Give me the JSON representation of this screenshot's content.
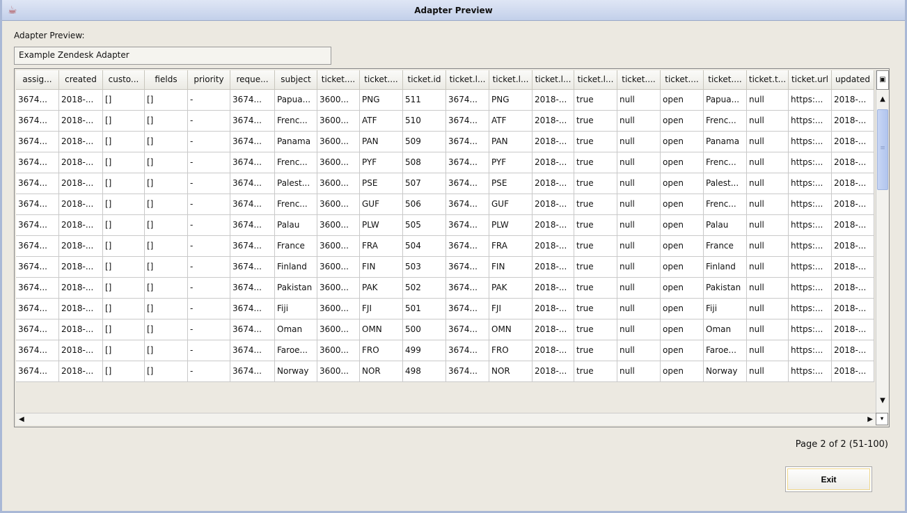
{
  "window": {
    "title": "Adapter Preview",
    "icon": "java-cup-icon"
  },
  "label": "Adapter Preview:",
  "adapter_name": "Example Zendesk Adapter",
  "columns": [
    "assig...",
    "created",
    "custo...",
    "fields",
    "priority",
    "reque...",
    "subject",
    "ticket....",
    "ticket....",
    "ticket.id",
    "ticket.l...",
    "ticket.l...",
    "ticket.l...",
    "ticket.l...",
    "ticket....",
    "ticket....",
    "ticket....",
    "ticket.t...",
    "ticket.url",
    "updated"
  ],
  "rows": [
    [
      "3674...",
      "2018-...",
      "[]",
      "[]",
      "-",
      "3674...",
      "Papua...",
      "3600...",
      "PNG",
      "511",
      "3674...",
      "PNG",
      "2018-...",
      "true",
      "null",
      "open",
      "Papua...",
      "null",
      "https:...",
      "2018-..."
    ],
    [
      "3674...",
      "2018-...",
      "[]",
      "[]",
      "-",
      "3674...",
      "Frenc...",
      "3600...",
      "ATF",
      "510",
      "3674...",
      "ATF",
      "2018-...",
      "true",
      "null",
      "open",
      "Frenc...",
      "null",
      "https:...",
      "2018-..."
    ],
    [
      "3674...",
      "2018-...",
      "[]",
      "[]",
      "-",
      "3674...",
      "Panama",
      "3600...",
      "PAN",
      "509",
      "3674...",
      "PAN",
      "2018-...",
      "true",
      "null",
      "open",
      "Panama",
      "null",
      "https:...",
      "2018-..."
    ],
    [
      "3674...",
      "2018-...",
      "[]",
      "[]",
      "-",
      "3674...",
      "Frenc...",
      "3600...",
      "PYF",
      "508",
      "3674...",
      "PYF",
      "2018-...",
      "true",
      "null",
      "open",
      "Frenc...",
      "null",
      "https:...",
      "2018-..."
    ],
    [
      "3674...",
      "2018-...",
      "[]",
      "[]",
      "-",
      "3674...",
      "Palest...",
      "3600...",
      "PSE",
      "507",
      "3674...",
      "PSE",
      "2018-...",
      "true",
      "null",
      "open",
      "Palest...",
      "null",
      "https:...",
      "2018-..."
    ],
    [
      "3674...",
      "2018-...",
      "[]",
      "[]",
      "-",
      "3674...",
      "Frenc...",
      "3600...",
      "GUF",
      "506",
      "3674...",
      "GUF",
      "2018-...",
      "true",
      "null",
      "open",
      "Frenc...",
      "null",
      "https:...",
      "2018-..."
    ],
    [
      "3674...",
      "2018-...",
      "[]",
      "[]",
      "-",
      "3674...",
      "Palau",
      "3600...",
      "PLW",
      "505",
      "3674...",
      "PLW",
      "2018-...",
      "true",
      "null",
      "open",
      "Palau",
      "null",
      "https:...",
      "2018-..."
    ],
    [
      "3674...",
      "2018-...",
      "[]",
      "[]",
      "-",
      "3674...",
      "France",
      "3600...",
      "FRA",
      "504",
      "3674...",
      "FRA",
      "2018-...",
      "true",
      "null",
      "open",
      "France",
      "null",
      "https:...",
      "2018-..."
    ],
    [
      "3674...",
      "2018-...",
      "[]",
      "[]",
      "-",
      "3674...",
      "Finland",
      "3600...",
      "FIN",
      "503",
      "3674...",
      "FIN",
      "2018-...",
      "true",
      "null",
      "open",
      "Finland",
      "null",
      "https:...",
      "2018-..."
    ],
    [
      "3674...",
      "2018-...",
      "[]",
      "[]",
      "-",
      "3674...",
      "Pakistan",
      "3600...",
      "PAK",
      "502",
      "3674...",
      "PAK",
      "2018-...",
      "true",
      "null",
      "open",
      "Pakistan",
      "null",
      "https:...",
      "2018-..."
    ],
    [
      "3674...",
      "2018-...",
      "[]",
      "[]",
      "-",
      "3674...",
      "Fiji",
      "3600...",
      "FJI",
      "501",
      "3674...",
      "FJI",
      "2018-...",
      "true",
      "null",
      "open",
      "Fiji",
      "null",
      "https:...",
      "2018-..."
    ],
    [
      "3674...",
      "2018-...",
      "[]",
      "[]",
      "-",
      "3674...",
      "Oman",
      "3600...",
      "OMN",
      "500",
      "3674...",
      "OMN",
      "2018-...",
      "true",
      "null",
      "open",
      "Oman",
      "null",
      "https:...",
      "2018-..."
    ],
    [
      "3674...",
      "2018-...",
      "[]",
      "[]",
      "-",
      "3674...",
      "Faroe...",
      "3600...",
      "FRO",
      "499",
      "3674...",
      "FRO",
      "2018-...",
      "true",
      "null",
      "open",
      "Faroe...",
      "null",
      "https:...",
      "2018-..."
    ],
    [
      "3674...",
      "2018-...",
      "[]",
      "[]",
      "-",
      "3674...",
      "Norway",
      "3600...",
      "NOR",
      "498",
      "3674...",
      "NOR",
      "2018-...",
      "true",
      "null",
      "open",
      "Norway",
      "null",
      "https:...",
      "2018-..."
    ]
  ],
  "pagination": "Page 2 of 2 (51-100)",
  "exit_label": "Exit"
}
